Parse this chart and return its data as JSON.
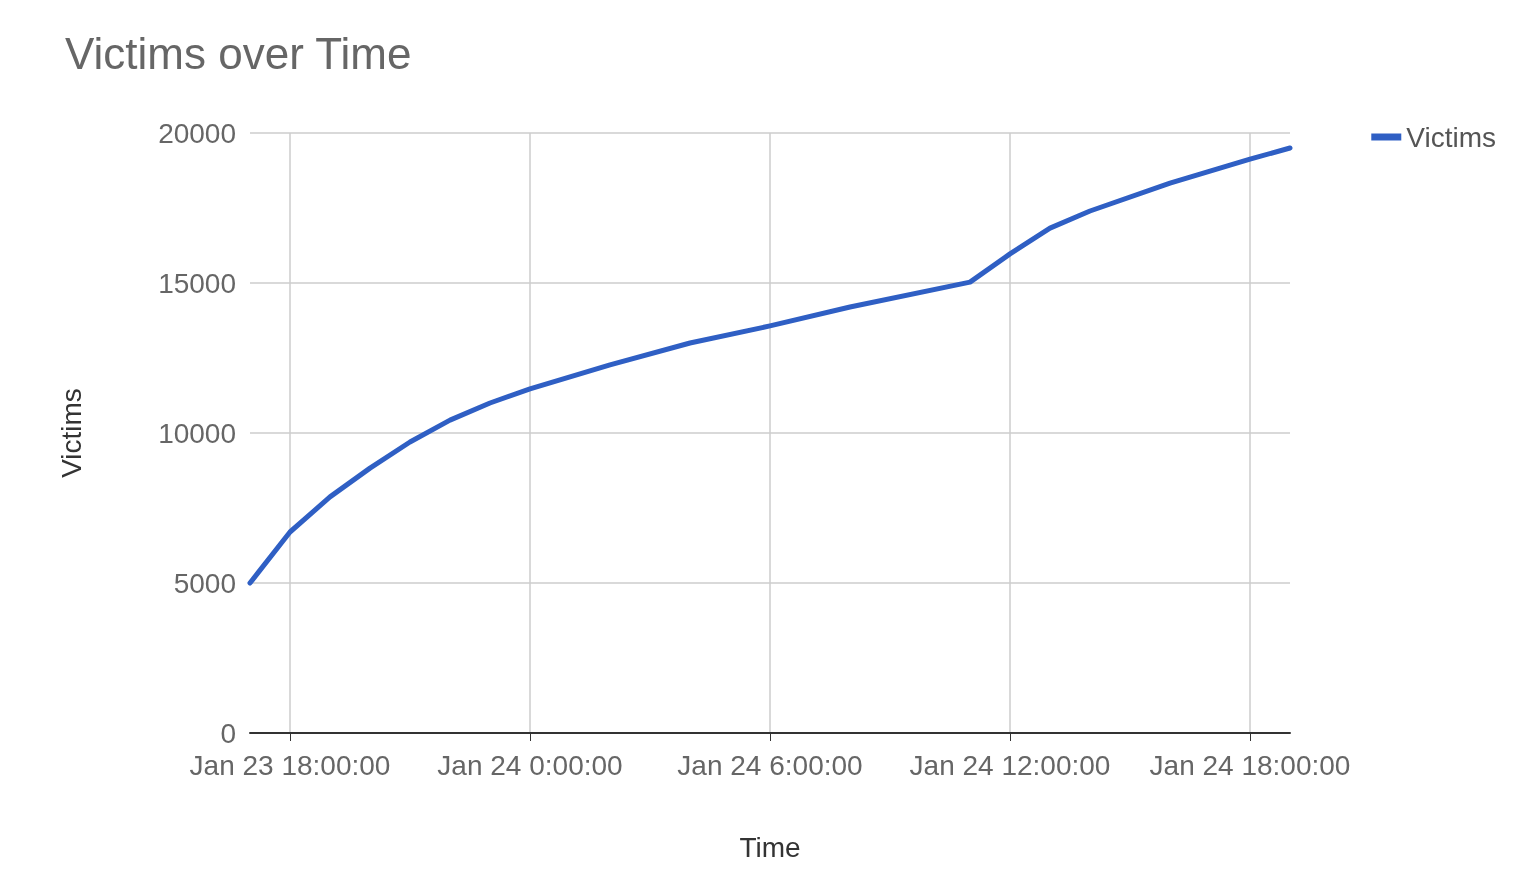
{
  "chart_data": {
    "type": "line",
    "title": "Victims over Time",
    "xlabel": "Time",
    "ylabel": "Victims",
    "x": [
      "--01-23T17:00",
      "--01-23T18:00",
      "--01-23T19:00",
      "--01-23T20:00",
      "--01-23T21:00",
      "--01-23T22:00",
      "--01-23T23:00",
      "--01-24T00:00",
      "--01-24T02:00",
      "--01-24T04:00",
      "--01-24T06:00",
      "--01-24T08:00",
      "--01-24T11:00",
      "--01-24T12:00",
      "--01-24T13:00",
      "--01-24T14:00",
      "--01-24T16:00",
      "--01-24T18:00",
      "--01-24T19:00"
    ],
    "series": [
      {
        "name": "Victims",
        "color": "#2f5fc4",
        "values": [
          5000,
          6700,
          7870,
          8830,
          9700,
          10430,
          11000,
          11470,
          12270,
          13000,
          13570,
          14200,
          15030,
          15970,
          16830,
          17400,
          18330,
          19130,
          19500
        ]
      }
    ],
    "xlim": [
      "--01-23T17:00",
      "--01-24T19:00"
    ],
    "xticks": [
      {
        "value": "--01-23T18:00",
        "label": "Jan 23 18:00:00"
      },
      {
        "value": "--01-24T00:00",
        "label": "Jan 24 0:00:00"
      },
      {
        "value": "--01-24T06:00",
        "label": "Jan 24 6:00:00"
      },
      {
        "value": "--01-24T12:00",
        "label": "Jan 24 12:00:00"
      },
      {
        "value": "--01-24T18:00",
        "label": "Jan 24 18:00:00"
      }
    ],
    "ylim": [
      0,
      20000
    ],
    "yticks": [
      0,
      5000,
      10000,
      15000,
      20000
    ],
    "grid": true,
    "legend": "top right",
    "marker": "none",
    "line_style": "solid"
  }
}
